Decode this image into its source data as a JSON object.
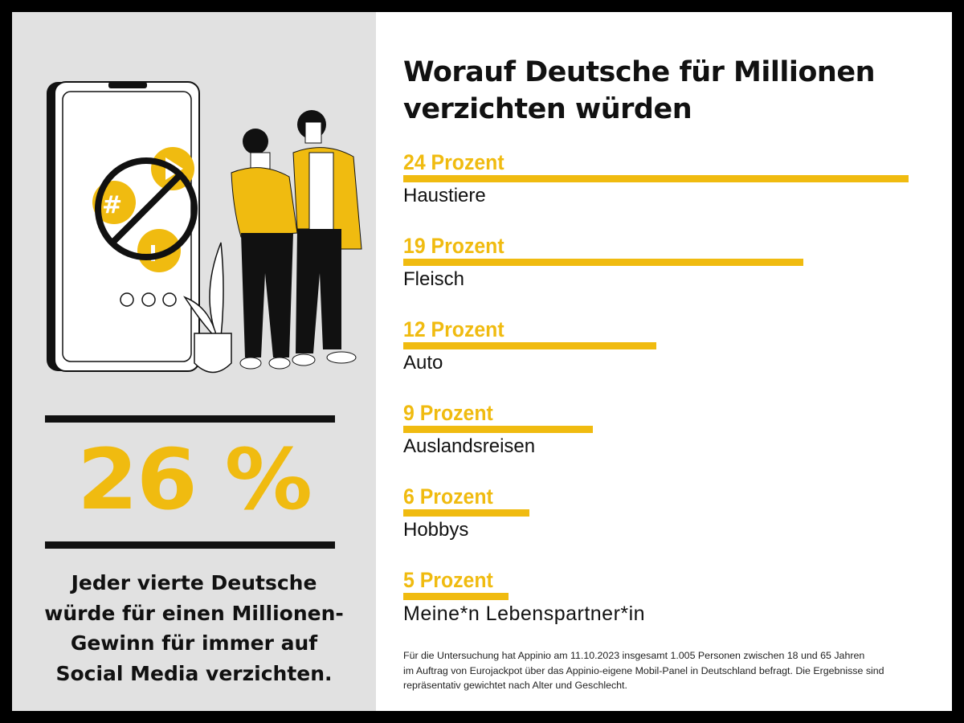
{
  "left_panel": {
    "big_number": "26 %",
    "claim_lines": [
      "Jeder vierte Deutsche",
      "würde für einen Millionen-",
      "Gewinn für immer auf",
      "Social Media verzichten."
    ],
    "illustration": "phone-with-prohibited-social-media-icons-and-couple",
    "illustration_icons": [
      "hashtag-icon",
      "play-icon",
      "thumbs-up-icon",
      "prohibited-icon"
    ]
  },
  "colors": {
    "accent": "#f0bb10",
    "left_bg": "#e1e1e1",
    "text": "#111111"
  },
  "chart_data": {
    "type": "bar",
    "orientation": "horizontal",
    "title_lines": [
      "Worauf Deutsche für Millionen",
      "verzichten würden"
    ],
    "categories": [
      "Haustiere",
      "Fleisch",
      "Auto",
      "Auslandsreisen",
      "Hobbys",
      "Meine*n Lebenspartner*in"
    ],
    "values": [
      24,
      19,
      12,
      9,
      6,
      5
    ],
    "value_labels": [
      "24 Prozent",
      "19 Prozent",
      "12 Prozent",
      "9 Prozent",
      "6 Prozent",
      "5 Prozent"
    ],
    "unit": "Prozent",
    "grid": false,
    "bar_color": "#f0bb10"
  },
  "footnote_lines": [
    "Für die Untersuchung hat Appinio am 11.10.2023 insgesamt 1.005 Personen zwischen 18 und 65 Jahren",
    "im Auftrag von Eurojackpot über das Appinio-eigene Mobil-Panel in Deutschland befragt. Die Ergebnisse sind",
    "repräsentativ gewichtet nach Alter und Geschlecht."
  ]
}
